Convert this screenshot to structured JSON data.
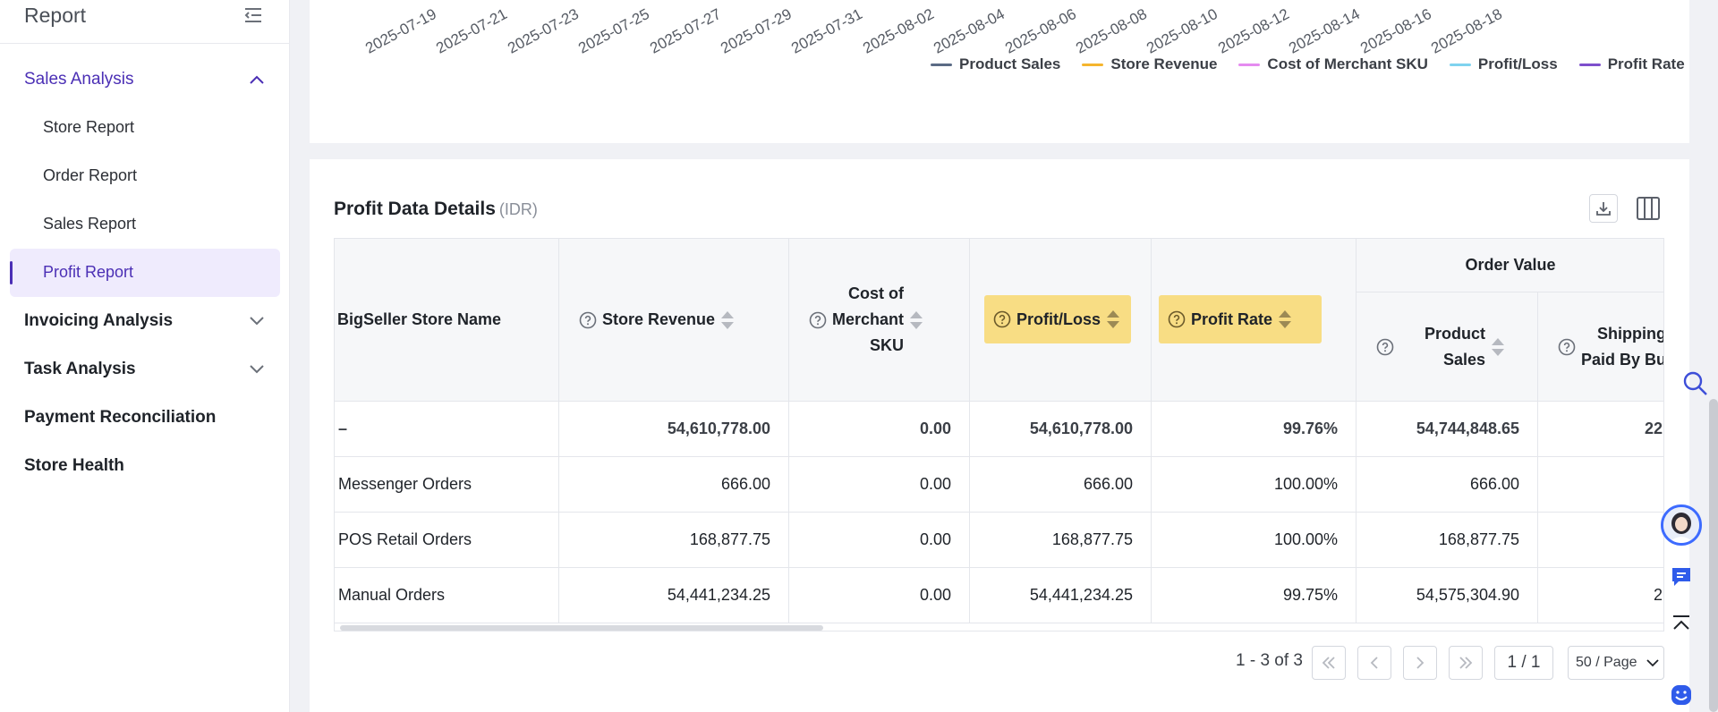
{
  "sidebar": {
    "title": "Report",
    "groups": [
      {
        "label": "Sales Analysis"
      },
      {
        "label": "Invoicing Analysis"
      },
      {
        "label": "Task Analysis"
      },
      {
        "label": "Payment Reconciliation"
      },
      {
        "label": "Store Health"
      }
    ],
    "items": [
      {
        "label": "Store Report"
      },
      {
        "label": "Order Report"
      },
      {
        "label": "Sales Report"
      },
      {
        "label": "Profit Report"
      }
    ]
  },
  "chart": {
    "dates": [
      "2025-07-19",
      "2025-07-21",
      "2025-07-23",
      "2025-07-25",
      "2025-07-27",
      "2025-07-29",
      "2025-07-31",
      "2025-08-02",
      "2025-08-04",
      "2025-08-06",
      "2025-08-08",
      "2025-08-10",
      "2025-08-12",
      "2025-08-14",
      "2025-08-16",
      "2025-08-18"
    ],
    "legend": [
      {
        "label": "Product Sales",
        "color": "#5b6b85"
      },
      {
        "label": "Store Revenue",
        "color": "#f5b52e"
      },
      {
        "label": "Cost of Merchant SKU",
        "color": "#e58bf0"
      },
      {
        "label": "Profit/Loss",
        "color": "#7fd3ef"
      },
      {
        "label": "Profit Rate",
        "color": "#7e4fcc"
      }
    ]
  },
  "details": {
    "title": "Profit Data Details",
    "currency": "(IDR)",
    "columns": {
      "store_name": "BigSeller Store Name",
      "store_revenue": "Store Revenue",
      "cost_sku_1": "Cost of",
      "cost_sku_2": "Merchant",
      "cost_sku_3": "SKU",
      "profit_loss": "Profit/Loss",
      "profit_rate": "Profit Rate",
      "order_value": "Order Value",
      "product_sales_1": "Product",
      "product_sales_2": "Sales",
      "shipping_1": "Shipping",
      "shipping_2": "Paid By Bu"
    },
    "rows": [
      {
        "name": "–",
        "revenue": "54,610,778.00",
        "cost": "0.00",
        "profit": "54,610,778.00",
        "rate": "99.76%",
        "sales": "54,744,848.65",
        "shipping": "22"
      },
      {
        "name": "Messenger Orders",
        "revenue": "666.00",
        "cost": "0.00",
        "profit": "666.00",
        "rate": "100.00%",
        "sales": "666.00",
        "shipping": ""
      },
      {
        "name": "POS Retail Orders",
        "revenue": "168,877.75",
        "cost": "0.00",
        "profit": "168,877.75",
        "rate": "100.00%",
        "sales": "168,877.75",
        "shipping": ""
      },
      {
        "name": "Manual Orders",
        "revenue": "54,441,234.25",
        "cost": "0.00",
        "profit": "54,441,234.25",
        "rate": "99.75%",
        "sales": "54,575,304.90",
        "shipping": "2"
      }
    ],
    "pagination": {
      "range": "1 - 3 of 3",
      "page": "1 / 1",
      "page_size": "50 / Page"
    }
  }
}
